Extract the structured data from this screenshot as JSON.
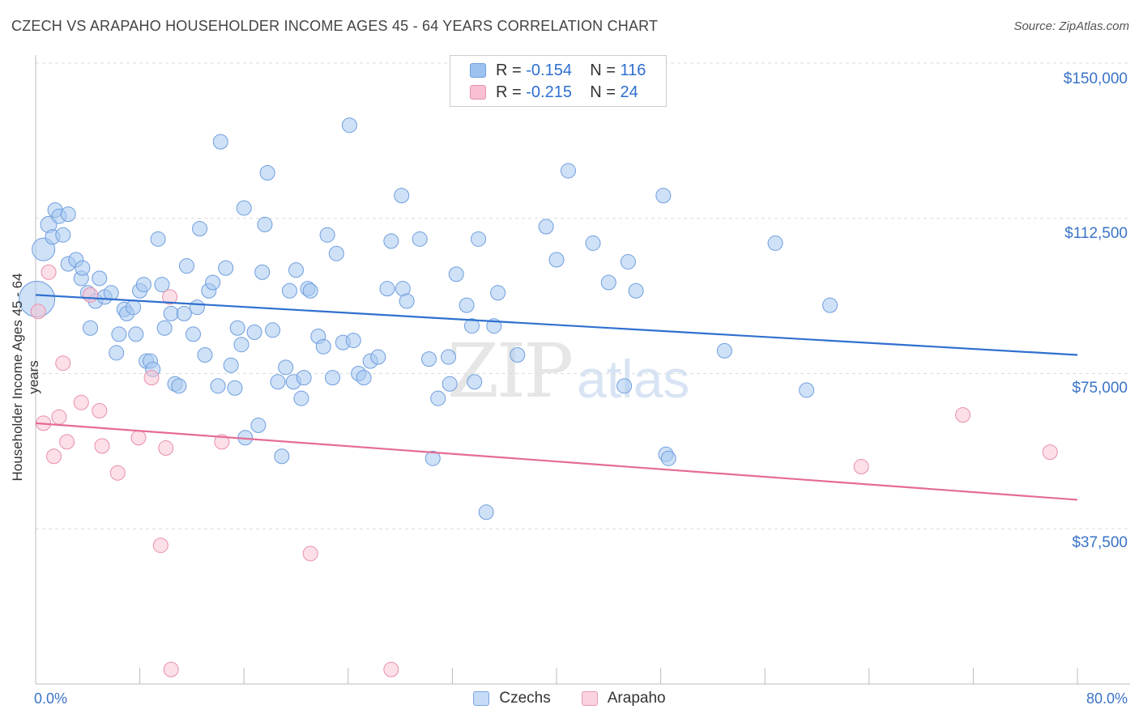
{
  "title": "CZECH VS ARAPAHO HOUSEHOLDER INCOME AGES 45 - 64 YEARS CORRELATION CHART",
  "source": "Source: ZipAtlas.com",
  "watermark": {
    "zip": "ZIP",
    "atlas": "atlas"
  },
  "legend": {
    "r_label": "R = ",
    "n_label": "N = ",
    "rows": [
      {
        "r": "-0.154",
        "n": "116",
        "color": "#9dc2f0",
        "border": "#6f9fdc"
      },
      {
        "r": "-0.215",
        "n": "24",
        "color": "#f8c0d2",
        "border": "#e890ad"
      }
    ]
  },
  "bottom_legend": [
    {
      "label": "Czechs",
      "color": "#c5dbf7",
      "border": "#7aa6e0"
    },
    {
      "label": "Arapaho",
      "color": "#fbd3e0",
      "border": "#e99ab5"
    }
  ],
  "chart_data": {
    "type": "scatter",
    "title": "CZECH VS ARAPAHO HOUSEHOLDER INCOME AGES 45 - 64 YEARS CORRELATION CHART",
    "xlabel": "",
    "ylabel": "Householder Income Ages 45 - 64 years",
    "xlim": [
      0,
      80
    ],
    "ylim": [
      0,
      152000
    ],
    "x_tick_labels": [
      "0.0%",
      "80.0%"
    ],
    "y_ticks": [
      37500,
      75000,
      112500,
      150000
    ],
    "y_tick_labels": [
      "$37,500",
      "$75,000",
      "$112,500",
      "$150,000"
    ],
    "grid": "horizontal dashed",
    "series": [
      {
        "name": "Czechs",
        "color": "#a8c8f0",
        "stroke": "#6e9ede",
        "trend": {
          "x": [
            0,
            80
          ],
          "y": [
            94000,
            79500
          ],
          "color": "#2f70cf"
        },
        "points": [
          [
            0.1,
            93000,
            22
          ],
          [
            0.6,
            105000,
            14
          ],
          [
            1.0,
            111000,
            10
          ],
          [
            1.3,
            108000,
            9
          ],
          [
            1.5,
            114500,
            9
          ],
          [
            1.8,
            113000,
            9
          ],
          [
            2.1,
            108500,
            9
          ],
          [
            2.5,
            113500,
            9
          ],
          [
            2.5,
            101500,
            9
          ],
          [
            3.1,
            102500,
            9
          ],
          [
            3.5,
            98000,
            9
          ],
          [
            3.6,
            100500,
            9
          ],
          [
            4.0,
            94500,
            9
          ],
          [
            4.2,
            86000,
            9
          ],
          [
            4.6,
            92500,
            9
          ],
          [
            4.9,
            98000,
            9
          ],
          [
            5.3,
            93500,
            9
          ],
          [
            5.8,
            94500,
            9
          ],
          [
            6.2,
            80000,
            9
          ],
          [
            6.4,
            84500,
            9
          ],
          [
            6.8,
            90500,
            9
          ],
          [
            7.0,
            89500,
            9
          ],
          [
            7.5,
            91000,
            9
          ],
          [
            7.7,
            84500,
            9
          ],
          [
            8.0,
            95000,
            9
          ],
          [
            8.3,
            96500,
            9
          ],
          [
            8.5,
            78000,
            9
          ],
          [
            8.8,
            78000,
            9
          ],
          [
            9.0,
            76000,
            9
          ],
          [
            9.4,
            107500,
            9
          ],
          [
            9.7,
            96500,
            9
          ],
          [
            9.9,
            86000,
            9
          ],
          [
            10.4,
            89500,
            9
          ],
          [
            10.7,
            72500,
            9
          ],
          [
            11.0,
            72000,
            9
          ],
          [
            11.4,
            89500,
            9
          ],
          [
            11.6,
            101000,
            9
          ],
          [
            12.1,
            84500,
            9
          ],
          [
            12.4,
            91000,
            9
          ],
          [
            12.6,
            110000,
            9
          ],
          [
            13.0,
            79500,
            9
          ],
          [
            13.3,
            95000,
            9
          ],
          [
            13.6,
            97000,
            9
          ],
          [
            14.0,
            72000,
            9
          ],
          [
            14.2,
            131000,
            9
          ],
          [
            14.6,
            100500,
            9
          ],
          [
            15.0,
            77000,
            9
          ],
          [
            15.3,
            71500,
            9
          ],
          [
            15.5,
            86000,
            9
          ],
          [
            15.8,
            82000,
            9
          ],
          [
            16.0,
            115000,
            9
          ],
          [
            16.1,
            59500,
            9
          ],
          [
            16.8,
            85000,
            9
          ],
          [
            17.1,
            62500,
            9
          ],
          [
            17.4,
            99500,
            9
          ],
          [
            17.6,
            111000,
            9
          ],
          [
            17.8,
            123500,
            9
          ],
          [
            18.2,
            85500,
            9
          ],
          [
            18.6,
            73000,
            9
          ],
          [
            18.9,
            55000,
            9
          ],
          [
            19.2,
            76500,
            9
          ],
          [
            19.5,
            95000,
            9
          ],
          [
            19.8,
            73000,
            9
          ],
          [
            20.0,
            100000,
            9
          ],
          [
            20.4,
            69000,
            9
          ],
          [
            20.6,
            74000,
            9
          ],
          [
            20.9,
            95500,
            9
          ],
          [
            21.1,
            95000,
            9
          ],
          [
            21.7,
            84000,
            9
          ],
          [
            22.1,
            81500,
            9
          ],
          [
            22.4,
            108500,
            9
          ],
          [
            22.8,
            74000,
            9
          ],
          [
            23.1,
            104000,
            9
          ],
          [
            23.6,
            82500,
            9
          ],
          [
            24.1,
            135000,
            9
          ],
          [
            24.4,
            83000,
            9
          ],
          [
            24.8,
            75000,
            9
          ],
          [
            25.2,
            74000,
            9
          ],
          [
            25.7,
            78000,
            9
          ],
          [
            26.3,
            79000,
            9
          ],
          [
            27.0,
            95500,
            9
          ],
          [
            27.3,
            107000,
            9
          ],
          [
            28.1,
            118000,
            9
          ],
          [
            28.2,
            95500,
            9
          ],
          [
            28.5,
            92500,
            9
          ],
          [
            29.5,
            107500,
            9
          ],
          [
            30.2,
            78500,
            9
          ],
          [
            30.5,
            54500,
            9
          ],
          [
            30.9,
            69000,
            9
          ],
          [
            31.7,
            79000,
            9
          ],
          [
            31.8,
            72500,
            9
          ],
          [
            32.3,
            99000,
            9
          ],
          [
            33.1,
            91500,
            9
          ],
          [
            33.5,
            86500,
            9
          ],
          [
            33.7,
            73000,
            9
          ],
          [
            34.0,
            107500,
            9
          ],
          [
            34.6,
            41500,
            9
          ],
          [
            35.2,
            86500,
            9
          ],
          [
            35.5,
            94500,
            9
          ],
          [
            37.0,
            79500,
            9
          ],
          [
            39.2,
            110500,
            9
          ],
          [
            40.0,
            102500,
            9
          ],
          [
            40.9,
            124000,
            9
          ],
          [
            42.8,
            106500,
            9
          ],
          [
            44.0,
            97000,
            9
          ],
          [
            45.2,
            72000,
            9
          ],
          [
            45.5,
            102000,
            9
          ],
          [
            46.1,
            95000,
            9
          ],
          [
            48.2,
            118000,
            9
          ],
          [
            48.4,
            55500,
            9
          ],
          [
            48.6,
            54500,
            9
          ],
          [
            52.9,
            80500,
            9
          ],
          [
            56.8,
            106500,
            9
          ],
          [
            59.2,
            71000,
            9
          ],
          [
            61.0,
            91500,
            9
          ]
        ]
      },
      {
        "name": "Arapaho",
        "color": "#f9c4d4",
        "stroke": "#e88fac",
        "trend": {
          "x": [
            0,
            80
          ],
          "y": [
            63000,
            44500
          ],
          "color": "#e56b95"
        },
        "points": [
          [
            0.2,
            90000,
            9
          ],
          [
            0.6,
            63000,
            9
          ],
          [
            1.0,
            99500,
            9
          ],
          [
            1.4,
            55000,
            9
          ],
          [
            1.8,
            64500,
            9
          ],
          [
            2.1,
            77500,
            9
          ],
          [
            2.4,
            58500,
            9
          ],
          [
            3.5,
            68000,
            9
          ],
          [
            4.2,
            94000,
            9
          ],
          [
            4.9,
            66000,
            9
          ],
          [
            5.1,
            57500,
            9
          ],
          [
            6.3,
            51000,
            9
          ],
          [
            7.9,
            59500,
            9
          ],
          [
            8.9,
            74000,
            9
          ],
          [
            9.6,
            33500,
            9
          ],
          [
            10.0,
            57000,
            9
          ],
          [
            10.3,
            93500,
            9
          ],
          [
            10.4,
            3500,
            9
          ],
          [
            14.3,
            58500,
            9
          ],
          [
            21.1,
            31500,
            9
          ],
          [
            27.3,
            3500,
            9
          ],
          [
            63.4,
            52500,
            9
          ],
          [
            71.2,
            65000,
            9
          ],
          [
            77.9,
            56000,
            9
          ]
        ]
      }
    ]
  }
}
